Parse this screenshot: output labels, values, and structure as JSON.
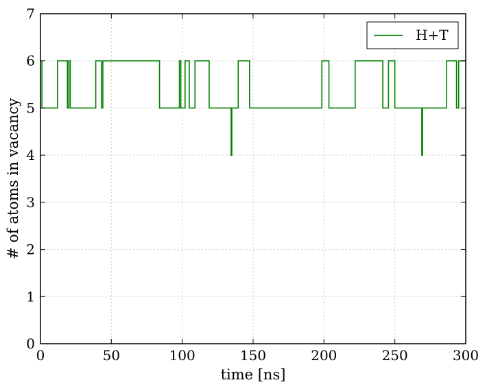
{
  "chart_data": {
    "type": "line",
    "xlabel": "time [ns]",
    "ylabel": "# of atoms in vacancy",
    "xlim": [
      0,
      300
    ],
    "ylim": [
      0,
      7
    ],
    "xticks": [
      "0",
      "50",
      "100",
      "150",
      "200",
      "250",
      "300"
    ],
    "yticks": [
      "0",
      "1",
      "2",
      "3",
      "4",
      "5",
      "6",
      "7"
    ],
    "grid": true,
    "legend_position": "top-right",
    "step": true,
    "series": [
      {
        "name": "H+T",
        "color": "#008000",
        "x": [
          0,
          1,
          12,
          19,
          20,
          21,
          39,
          43,
          44,
          84,
          98,
          99,
          102,
          105,
          109,
          119,
          134.5,
          135,
          139.5,
          147.5,
          198.5,
          203.5,
          222,
          241.5,
          245.5,
          250,
          269,
          269.5,
          286.5,
          293.5,
          295,
          300
        ],
        "y": [
          6,
          5,
          6,
          5,
          6,
          5,
          6,
          5,
          6,
          5,
          6,
          5,
          6,
          5,
          6,
          5,
          4,
          5,
          6,
          5,
          6,
          5,
          6,
          5,
          6,
          5,
          4,
          5,
          6,
          5,
          6,
          6
        ]
      }
    ]
  }
}
